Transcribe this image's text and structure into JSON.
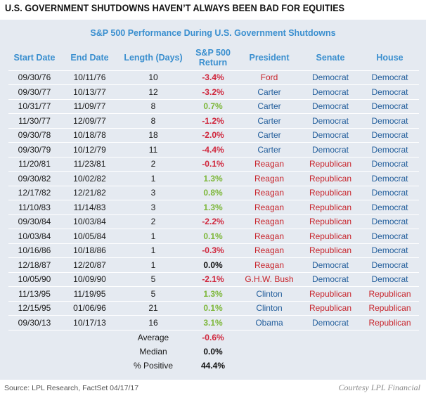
{
  "headline": "U.S. GOVERNMENT SHUTDOWNS HAVEN’T ALWAYS BEEN BAD FOR EQUITIES",
  "footer": {
    "source": "Source: LPL Research, FactSet  04/17/17",
    "courtesy": "Courtesy LPL Financial"
  },
  "colors": {
    "accent": "#3a8fcf",
    "panel": "#e5eaf1",
    "negative": "#d0263c",
    "positive": "#7db73a",
    "democrat": "#245f9c",
    "republican": "#c8242b"
  },
  "chart_data": {
    "type": "table",
    "title": "S&P 500 Performance During U.S. Government Shutdowns",
    "columns": [
      "Start Date",
      "End Date",
      "Length (Days)",
      "S&P 500 Return",
      "President",
      "Senate",
      "House"
    ],
    "rows": [
      {
        "start": "09/30/76",
        "end": "10/11/76",
        "length": "10",
        "ret": "-3.4%",
        "sign": "neg",
        "president": "Ford",
        "pres_party": "Republican",
        "senate": "Democrat",
        "house": "Democrat"
      },
      {
        "start": "09/30/77",
        "end": "10/13/77",
        "length": "12",
        "ret": "-3.2%",
        "sign": "neg",
        "president": "Carter",
        "pres_party": "Democrat",
        "senate": "Democrat",
        "house": "Democrat"
      },
      {
        "start": "10/31/77",
        "end": "11/09/77",
        "length": "8",
        "ret": "0.7%",
        "sign": "pos",
        "president": "Carter",
        "pres_party": "Democrat",
        "senate": "Democrat",
        "house": "Democrat"
      },
      {
        "start": "11/30/77",
        "end": "12/09/77",
        "length": "8",
        "ret": "-1.2%",
        "sign": "neg",
        "president": "Carter",
        "pres_party": "Democrat",
        "senate": "Democrat",
        "house": "Democrat"
      },
      {
        "start": "09/30/78",
        "end": "10/18/78",
        "length": "18",
        "ret": "-2.0%",
        "sign": "neg",
        "president": "Carter",
        "pres_party": "Democrat",
        "senate": "Democrat",
        "house": "Democrat"
      },
      {
        "start": "09/30/79",
        "end": "10/12/79",
        "length": "11",
        "ret": "-4.4%",
        "sign": "neg",
        "president": "Carter",
        "pres_party": "Democrat",
        "senate": "Democrat",
        "house": "Democrat"
      },
      {
        "start": "11/20/81",
        "end": "11/23/81",
        "length": "2",
        "ret": "-0.1%",
        "sign": "neg",
        "president": "Reagan",
        "pres_party": "Republican",
        "senate": "Republican",
        "house": "Democrat"
      },
      {
        "start": "09/30/82",
        "end": "10/02/82",
        "length": "1",
        "ret": "1.3%",
        "sign": "pos",
        "president": "Reagan",
        "pres_party": "Republican",
        "senate": "Republican",
        "house": "Democrat"
      },
      {
        "start": "12/17/82",
        "end": "12/21/82",
        "length": "3",
        "ret": "0.8%",
        "sign": "pos",
        "president": "Reagan",
        "pres_party": "Republican",
        "senate": "Republican",
        "house": "Democrat"
      },
      {
        "start": "11/10/83",
        "end": "11/14/83",
        "length": "3",
        "ret": "1.3%",
        "sign": "pos",
        "president": "Reagan",
        "pres_party": "Republican",
        "senate": "Republican",
        "house": "Democrat"
      },
      {
        "start": "09/30/84",
        "end": "10/03/84",
        "length": "2",
        "ret": "-2.2%",
        "sign": "neg",
        "president": "Reagan",
        "pres_party": "Republican",
        "senate": "Republican",
        "house": "Democrat"
      },
      {
        "start": "10/03/84",
        "end": "10/05/84",
        "length": "1",
        "ret": "0.1%",
        "sign": "pos",
        "president": "Reagan",
        "pres_party": "Republican",
        "senate": "Republican",
        "house": "Democrat"
      },
      {
        "start": "10/16/86",
        "end": "10/18/86",
        "length": "1",
        "ret": "-0.3%",
        "sign": "neg",
        "president": "Reagan",
        "pres_party": "Republican",
        "senate": "Republican",
        "house": "Democrat"
      },
      {
        "start": "12/18/87",
        "end": "12/20/87",
        "length": "1",
        "ret": "0.0%",
        "sign": "zero",
        "president": "Reagan",
        "pres_party": "Republican",
        "senate": "Democrat",
        "house": "Democrat"
      },
      {
        "start": "10/05/90",
        "end": "10/09/90",
        "length": "5",
        "ret": "-2.1%",
        "sign": "neg",
        "president": "G.H.W. Bush",
        "pres_party": "Republican",
        "senate": "Democrat",
        "house": "Democrat"
      },
      {
        "start": "11/13/95",
        "end": "11/19/95",
        "length": "5",
        "ret": "1.3%",
        "sign": "pos",
        "president": "Clinton",
        "pres_party": "Democrat",
        "senate": "Republican",
        "house": "Republican"
      },
      {
        "start": "12/15/95",
        "end": "01/06/96",
        "length": "21",
        "ret": "0.1%",
        "sign": "pos",
        "president": "Clinton",
        "pres_party": "Democrat",
        "senate": "Republican",
        "house": "Republican"
      },
      {
        "start": "09/30/13",
        "end": "10/17/13",
        "length": "16",
        "ret": "3.1%",
        "sign": "pos",
        "president": "Obama",
        "pres_party": "Democrat",
        "senate": "Democrat",
        "house": "Republican"
      }
    ],
    "summary": [
      {
        "label": "Average",
        "value": "-0.6%",
        "sign": "neg"
      },
      {
        "label": "Median",
        "value": "0.0%",
        "sign": "zero"
      },
      {
        "label": "% Positive",
        "value": "44.4%",
        "sign": "zero"
      }
    ]
  }
}
